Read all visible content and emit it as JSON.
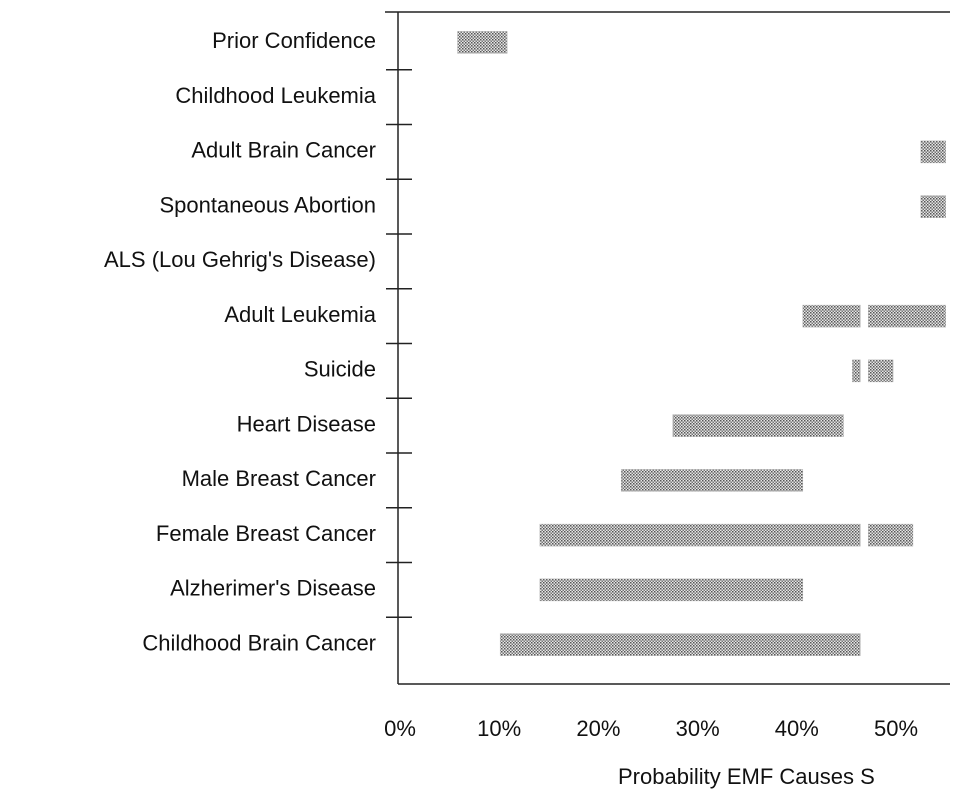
{
  "chart_data": {
    "type": "range-bar",
    "x_label": "Probability EMF Causes S",
    "categories": [
      "Prior Confidence",
      "Childhood Leukemia",
      "Adult Brain Cancer",
      "Spontaneous Abortion",
      "ALS (Lou Gehrig's Disease)",
      "Adult Leukemia",
      "Suicide",
      "Heart Disease",
      "Male Breast Cancer",
      "Female Breast Cancer",
      "Alzherimer's Disease",
      "Childhood Brain Cancer"
    ],
    "ranges": [
      [
        [
          5.8,
          10.8
        ]
      ],
      [],
      [
        [
          52.5,
          55
        ]
      ],
      [
        [
          52.5,
          55
        ]
      ],
      [],
      [
        [
          40.6,
          46.4
        ],
        [
          47.2,
          55
        ]
      ],
      [
        [
          45.6,
          46.4
        ],
        [
          47.2,
          49.7
        ]
      ],
      [
        [
          27.5,
          44.7
        ]
      ],
      [
        [
          22.3,
          40.6
        ]
      ],
      [
        [
          14.1,
          46.4
        ],
        [
          47.2,
          51.7
        ]
      ],
      [
        [
          14.1,
          40.6
        ]
      ],
      [
        [
          10.1,
          46.4
        ]
      ]
    ],
    "color": "#b4b4b4",
    "xlim": [
      0,
      55.5
    ],
    "xticks": [
      {
        "value": 0,
        "label": "0%"
      },
      {
        "value": 10,
        "label": "10%"
      },
      {
        "value": 20,
        "label": "20%"
      },
      {
        "value": 30,
        "label": "30%"
      },
      {
        "value": 40,
        "label": "40%"
      },
      {
        "value": 50,
        "label": "50%"
      }
    ]
  }
}
